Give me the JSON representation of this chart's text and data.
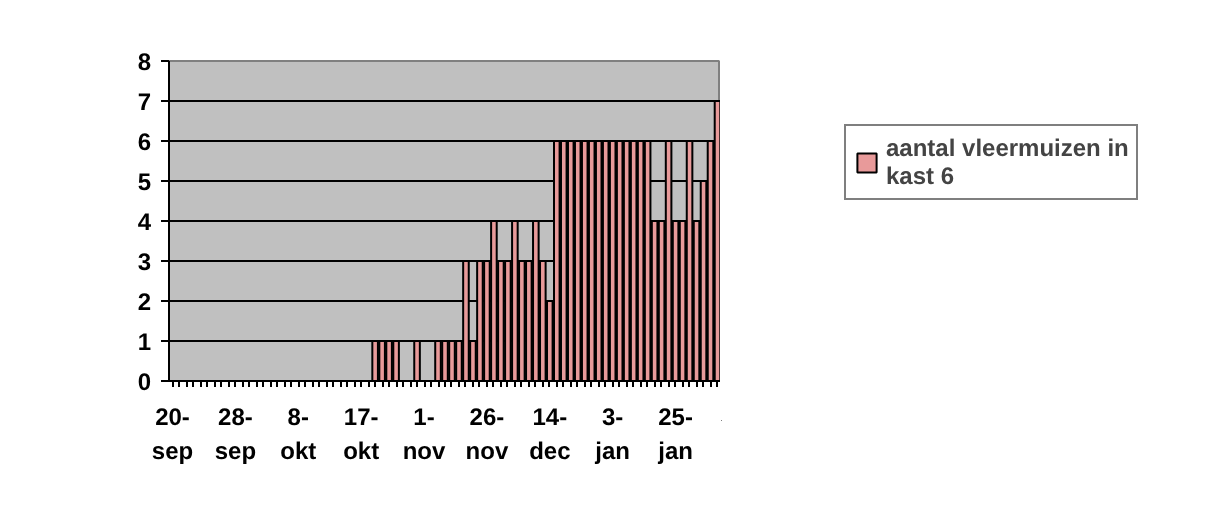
{
  "chart_data": {
    "type": "bar",
    "categories": [
      "20-sep",
      null,
      null,
      null,
      null,
      null,
      null,
      null,
      null,
      "28-sep",
      null,
      null,
      null,
      null,
      null,
      null,
      null,
      null,
      "8-okt",
      null,
      null,
      null,
      null,
      null,
      null,
      null,
      null,
      "17-okt",
      null,
      null,
      null,
      null,
      null,
      null,
      null,
      null,
      "1-nov",
      null,
      null,
      null,
      null,
      null,
      null,
      null,
      null,
      "26-nov",
      null,
      null,
      null,
      null,
      null,
      null,
      null,
      null,
      "14-dec",
      null,
      null,
      null,
      null,
      null,
      null,
      null,
      null,
      "3-jan",
      null,
      null,
      null,
      null,
      null,
      null,
      null,
      null,
      "25-jan",
      null,
      null,
      null,
      null,
      null,
      null
    ],
    "series": [
      {
        "name": "aantal vleermuizen in kast 6",
        "color": "#e89a9a",
        "values": [
          0,
          0,
          0,
          0,
          0,
          0,
          0,
          0,
          0,
          0,
          0,
          0,
          0,
          0,
          0,
          0,
          0,
          0,
          0,
          0,
          0,
          0,
          0,
          0,
          0,
          0,
          0,
          0,
          0,
          1,
          1,
          1,
          1,
          0,
          0,
          1,
          0,
          0,
          1,
          1,
          1,
          1,
          3,
          1,
          3,
          3,
          4,
          3,
          3,
          4,
          3,
          3,
          4,
          3,
          2,
          6,
          6,
          6,
          6,
          6,
          6,
          6,
          6,
          6,
          6,
          6,
          6,
          6,
          6,
          4,
          4,
          6,
          4,
          4,
          6,
          4,
          5,
          6,
          7
        ]
      }
    ],
    "ylim": [
      0,
      8
    ],
    "yticks": [
      0,
      1,
      2,
      3,
      4,
      5,
      6,
      7,
      8
    ],
    "grid": "y",
    "legend": "right"
  }
}
